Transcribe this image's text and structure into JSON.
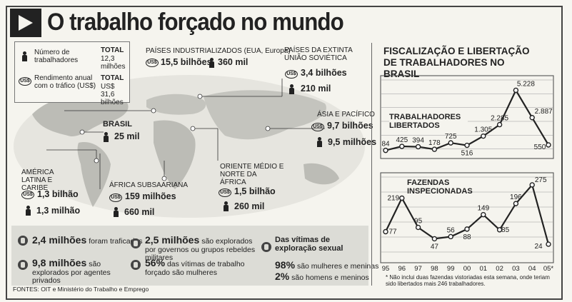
{
  "title": "O trabalho forçado no mundo",
  "legend": {
    "workers_label": "Número de trabalhadores",
    "workers_total_label": "TOTAL",
    "workers_total_value": "12,3 milhões",
    "revenue_label": "Rendimento anual com o tráfico (US$)",
    "revenue_total_label": "TOTAL",
    "revenue_total_value": "US$ 31,6 bilhões",
    "coin_symbol": "US$"
  },
  "regions": [
    {
      "name": "PAÍSES INDUSTRIALIZADOS (EUA, Europa)",
      "revenue": "15,5 bilhões",
      "workers": "360 mil"
    },
    {
      "name": "PAÍSES DA EXTINTA UNIÃO SOVIÉTICA",
      "revenue": "3,4 bilhões",
      "workers": "210 mil"
    },
    {
      "name": "BRASIL",
      "revenue": "",
      "workers": "25 mil"
    },
    {
      "name": "ÁSIA E PACÍFICO",
      "revenue": "9,7 bilhões",
      "workers": "9,5 milhões"
    },
    {
      "name": "AMÉRICA LATINA E CARIBE",
      "revenue": "1,3 bilhão",
      "workers": "1,3 milhão"
    },
    {
      "name": "ÁFRICA SUBSAARIANA",
      "revenue": "159 milhões",
      "workers": "660 mil"
    },
    {
      "name": "ORIENTE MÉDIO E NORTE DA ÁFRICA",
      "revenue": "1,5 bilhão",
      "workers": "260 mil"
    }
  ],
  "facts": [
    {
      "bold": "2,4 milhões",
      "text": "foram traficados"
    },
    {
      "bold": "9,8 milhões",
      "text": "são explorados por agentes privados"
    },
    {
      "bold": "2,5 milhões",
      "text": "são explorados por governos ou grupos rebeldes militares"
    },
    {
      "bold": "56%",
      "text": "das vítimas de trabalho forçado são mulheres"
    },
    {
      "bold": "Das vítimas de exploração sexual",
      "text": ""
    },
    {
      "bold": "98%",
      "text": "são mulheres e meninas"
    },
    {
      "bold": "2%",
      "text": "são homens e meninos"
    }
  ],
  "sources": "FONTES: OIT e Ministério do Trabalho e Emprego",
  "chart_title": "FISCALIZAÇÃO E LIBERTAÇÃO DE TRABALHADORES NO BRASIL",
  "footnote": "* Não inclui duas fazendas vistoriadas esta semana, onde teriam sido libertados mais 246 trabalhadores.",
  "chart_data": [
    {
      "type": "line",
      "title": "TRABALHADORES LIBERTADOS",
      "categories": [
        "95",
        "96",
        "97",
        "98",
        "99",
        "00",
        "01",
        "02",
        "03",
        "04",
        "05*"
      ],
      "values": [
        84,
        425,
        394,
        178,
        725,
        516,
        1305,
        2285,
        5228,
        2887,
        550
      ],
      "labels": [
        "84",
        "425",
        "394",
        "178",
        "725",
        "516",
        "1.305",
        "2.285",
        "5.228",
        "2.887",
        "550"
      ],
      "ylim": [
        0,
        5500
      ]
    },
    {
      "type": "line",
      "title": "FAZENDAS INSPECIONADAS",
      "categories": [
        "95",
        "96",
        "97",
        "98",
        "99",
        "00",
        "01",
        "02",
        "03",
        "04",
        "05*"
      ],
      "values": [
        77,
        219,
        95,
        47,
        56,
        88,
        149,
        85,
        196,
        275,
        24
      ],
      "labels": [
        "77",
        "219",
        "95",
        "47",
        "56",
        "88",
        "149",
        "85",
        "196",
        "275",
        "24"
      ],
      "ylim": [
        0,
        290
      ]
    }
  ]
}
